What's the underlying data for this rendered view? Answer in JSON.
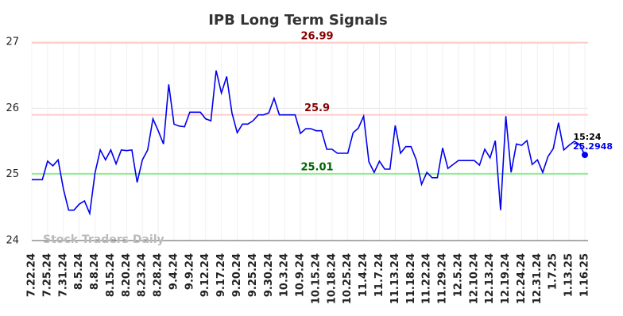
{
  "chart_data": {
    "type": "line",
    "title": "IPB Long Term Signals",
    "categories": [
      "7.22.24",
      null,
      null,
      "7.25.24",
      null,
      null,
      "7.31.24",
      null,
      null,
      "8.5.24",
      null,
      null,
      "8.8.24",
      null,
      null,
      "8.15.24",
      null,
      null,
      "8.20.24",
      null,
      null,
      "8.23.24",
      null,
      null,
      "8.28.24",
      null,
      null,
      "9.4.24",
      null,
      null,
      "9.9.24",
      null,
      null,
      "9.12.24",
      null,
      null,
      "9.17.24",
      null,
      null,
      "9.20.24",
      null,
      null,
      "9.25.24",
      null,
      null,
      "9.30.24",
      null,
      null,
      "10.3.24",
      null,
      null,
      "10.9.24",
      null,
      null,
      "10.15.24",
      null,
      null,
      "10.18.24",
      null,
      null,
      "10.25.24",
      null,
      null,
      "11.4.24",
      null,
      null,
      "11.7.24",
      null,
      null,
      "11.13.24",
      null,
      null,
      "11.18.24",
      null,
      null,
      "11.22.24",
      null,
      null,
      "11.29.24",
      null,
      null,
      "12.5.24",
      null,
      null,
      "12.10.24",
      null,
      null,
      "12.13.24",
      null,
      null,
      "12.19.24",
      null,
      null,
      "12.24.24",
      null,
      null,
      "12.31.24",
      null,
      null,
      "1.7.25",
      null,
      null,
      "1.13.25",
      null,
      null,
      "1.16.25"
    ],
    "series": [
      {
        "name": "IPB",
        "color": "#0000ee",
        "values": [
          24.92,
          24.92,
          24.92,
          25.2,
          25.13,
          25.22,
          24.78,
          24.46,
          24.46,
          24.55,
          24.6,
          24.41,
          25.02,
          25.37,
          25.22,
          25.37,
          25.16,
          25.37,
          25.36,
          25.37,
          24.88,
          25.22,
          25.37,
          25.84,
          25.66,
          25.46,
          26.36,
          25.76,
          25.73,
          25.72,
          25.94,
          25.94,
          25.94,
          25.84,
          25.81,
          26.57,
          26.23,
          26.48,
          25.93,
          25.63,
          25.76,
          25.76,
          25.81,
          25.9,
          25.9,
          25.93,
          26.15,
          25.9,
          25.9,
          25.9,
          25.9,
          25.62,
          25.69,
          25.69,
          25.66,
          25.66,
          25.38,
          25.38,
          25.32,
          25.32,
          25.32,
          25.63,
          25.7,
          25.88,
          25.19,
          25.03,
          25.2,
          25.08,
          25.08,
          25.74,
          25.32,
          25.42,
          25.42,
          25.22,
          24.85,
          25.03,
          24.95,
          24.95,
          25.4,
          25.09,
          25.15,
          25.21,
          25.21,
          25.21,
          25.21,
          25.14,
          25.38,
          25.25,
          25.51,
          24.46,
          25.88,
          25.03,
          25.46,
          25.44,
          25.51,
          25.15,
          25.22,
          25.03,
          25.27,
          25.39,
          25.78,
          25.37,
          25.44,
          25.5,
          25.45,
          25.2948
        ]
      }
    ],
    "last_time": "15:24",
    "hlines": [
      {
        "value": 26.99,
        "color": "#ffcccc",
        "label_color": "#8b0000"
      },
      {
        "value": 25.9,
        "color": "#ffcccc",
        "label_color": "#8b0000"
      },
      {
        "value": 25.01,
        "color": "#90ee90",
        "label_color": "#006400"
      }
    ],
    "watermark": "Stock Traders Daily",
    "ylim": [
      24,
      27
    ],
    "yticks": [
      24,
      25,
      26,
      27
    ],
    "grid": true
  }
}
